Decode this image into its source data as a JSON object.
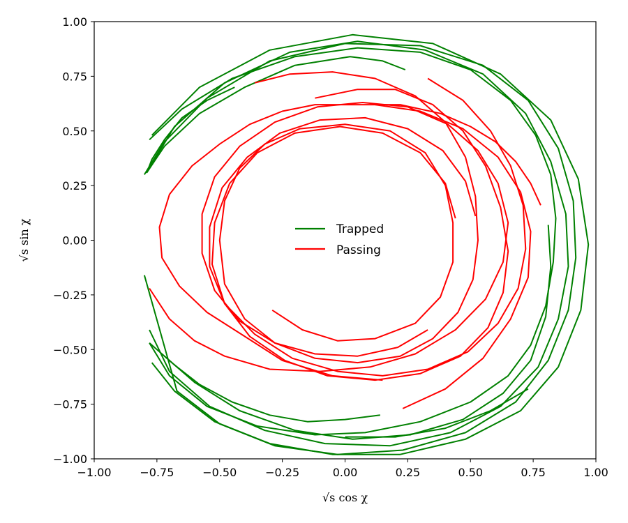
{
  "chart_data": {
    "type": "line",
    "xlabel": "√s cos χ",
    "ylabel": "√s sin χ",
    "xlim": [
      -1.0,
      1.0
    ],
    "ylim": [
      -1.0,
      1.0
    ],
    "xticks": [
      "−1.00",
      "−0.75",
      "−0.50",
      "−0.25",
      "0.00",
      "0.25",
      "0.50",
      "0.75",
      "1.00"
    ],
    "yticks": [
      "−1.00",
      "−0.75",
      "−0.50",
      "−0.25",
      "0.00",
      "0.25",
      "0.50",
      "0.75",
      "1.00"
    ],
    "grid": false,
    "legend": {
      "position": "center",
      "entries": [
        "Trapped",
        "Passing"
      ]
    },
    "colors": {
      "Trapped": "#008000",
      "Passing": "#ff0000"
    },
    "series": [
      {
        "name": "Trapped",
        "color": "#008000",
        "values": [
          [
            -0.44,
            0.7
          ],
          [
            -0.55,
            0.64
          ],
          [
            -0.65,
            0.56
          ],
          [
            -0.72,
            0.46
          ],
          [
            -0.77,
            0.37
          ],
          [
            -0.79,
            0.31
          ],
          [
            -0.72,
            0.43
          ],
          [
            -0.58,
            0.58
          ],
          [
            -0.4,
            0.7
          ],
          [
            -0.2,
            0.8
          ],
          [
            0.02,
            0.84
          ],
          [
            0.15,
            0.82
          ],
          [
            0.24,
            0.78
          ]
        ]
      },
      {
        "name": "Trapped",
        "color": "#008000",
        "values": [
          [
            -0.78,
            0.46
          ],
          [
            -0.65,
            0.6
          ],
          [
            -0.45,
            0.74
          ],
          [
            -0.2,
            0.84
          ],
          [
            0.05,
            0.88
          ],
          [
            0.3,
            0.86
          ],
          [
            0.5,
            0.78
          ],
          [
            0.66,
            0.64
          ],
          [
            0.76,
            0.48
          ],
          [
            0.82,
            0.3
          ],
          [
            0.84,
            0.1
          ],
          [
            0.83,
            -0.1
          ],
          [
            0.8,
            -0.3
          ],
          [
            0.74,
            -0.48
          ],
          [
            0.65,
            -0.62
          ],
          [
            0.5,
            -0.74
          ],
          [
            0.3,
            -0.83
          ],
          [
            0.08,
            -0.88
          ],
          [
            -0.12,
            -0.89
          ],
          [
            -0.35,
            -0.85
          ],
          [
            -0.55,
            -0.76
          ],
          [
            -0.7,
            -0.62
          ],
          [
            -0.78,
            -0.47
          ]
        ]
      },
      {
        "name": "Trapped",
        "color": "#008000",
        "values": [
          [
            -0.8,
            0.3
          ],
          [
            -0.72,
            0.45
          ],
          [
            -0.55,
            0.65
          ],
          [
            -0.3,
            0.82
          ],
          [
            0.0,
            0.9
          ],
          [
            0.3,
            0.89
          ],
          [
            0.55,
            0.8
          ],
          [
            0.73,
            0.64
          ],
          [
            0.85,
            0.42
          ],
          [
            0.91,
            0.18
          ],
          [
            0.92,
            -0.08
          ],
          [
            0.89,
            -0.32
          ],
          [
            0.81,
            -0.55
          ],
          [
            0.68,
            -0.74
          ],
          [
            0.48,
            -0.88
          ],
          [
            0.23,
            -0.96
          ],
          [
            -0.03,
            -0.98
          ],
          [
            -0.28,
            -0.94
          ],
          [
            -0.5,
            -0.84
          ],
          [
            -0.67,
            -0.69
          ],
          [
            -0.8,
            -0.16
          ]
        ]
      },
      {
        "name": "Trapped",
        "color": "#008000",
        "values": [
          [
            -0.79,
            0.31
          ],
          [
            -0.68,
            0.52
          ],
          [
            -0.48,
            0.72
          ],
          [
            -0.22,
            0.86
          ],
          [
            0.05,
            0.91
          ],
          [
            0.32,
            0.87
          ],
          [
            0.55,
            0.76
          ],
          [
            0.72,
            0.58
          ],
          [
            0.82,
            0.36
          ],
          [
            0.88,
            0.12
          ],
          [
            0.89,
            -0.12
          ],
          [
            0.85,
            -0.36
          ],
          [
            0.77,
            -0.58
          ],
          [
            0.62,
            -0.76
          ],
          [
            0.42,
            -0.88
          ],
          [
            0.18,
            -0.94
          ],
          [
            -0.08,
            -0.93
          ],
          [
            -0.32,
            -0.87
          ],
          [
            -0.54,
            -0.76
          ],
          [
            -0.7,
            -0.6
          ],
          [
            -0.78,
            -0.41
          ]
        ]
      },
      {
        "name": "Trapped",
        "color": "#008000",
        "values": [
          [
            -0.77,
            0.48
          ],
          [
            -0.58,
            0.7
          ],
          [
            -0.3,
            0.87
          ],
          [
            0.03,
            0.94
          ],
          [
            0.35,
            0.9
          ],
          [
            0.62,
            0.76
          ],
          [
            0.82,
            0.55
          ],
          [
            0.93,
            0.28
          ],
          [
            0.97,
            -0.02
          ],
          [
            0.94,
            -0.32
          ],
          [
            0.85,
            -0.58
          ],
          [
            0.7,
            -0.78
          ],
          [
            0.48,
            -0.91
          ],
          [
            0.22,
            -0.98
          ],
          [
            -0.05,
            -0.98
          ],
          [
            -0.3,
            -0.93
          ],
          [
            -0.52,
            -0.83
          ],
          [
            -0.68,
            -0.69
          ],
          [
            -0.77,
            -0.56
          ]
        ]
      },
      {
        "name": "Trapped",
        "color": "#008000",
        "values": [
          [
            0.81,
            0.07
          ],
          [
            0.82,
            -0.12
          ],
          [
            0.8,
            -0.35
          ],
          [
            0.74,
            -0.55
          ],
          [
            0.63,
            -0.7
          ],
          [
            0.47,
            -0.82
          ],
          [
            0.26,
            -0.89
          ],
          [
            0.03,
            -0.91
          ],
          [
            -0.2,
            -0.87
          ],
          [
            -0.42,
            -0.78
          ],
          [
            -0.6,
            -0.65
          ],
          [
            -0.72,
            -0.53
          ]
        ]
      },
      {
        "name": "Trapped",
        "color": "#008000",
        "values": [
          [
            0.14,
            -0.8
          ],
          [
            0.0,
            -0.82
          ],
          [
            -0.15,
            -0.83
          ],
          [
            -0.3,
            -0.8
          ],
          [
            -0.45,
            -0.74
          ],
          [
            -0.58,
            -0.66
          ],
          [
            -0.68,
            -0.57
          ],
          [
            -0.75,
            -0.5
          ],
          [
            -0.78,
            -0.47
          ]
        ]
      },
      {
        "name": "Trapped",
        "color": "#008000",
        "values": [
          [
            0.73,
            -0.68
          ],
          [
            0.58,
            -0.78
          ],
          [
            0.4,
            -0.86
          ],
          [
            0.2,
            -0.9
          ],
          [
            0.0,
            -0.9
          ]
        ]
      },
      {
        "name": "Passing",
        "color": "#ff0000",
        "values": [
          [
            -0.36,
            0.72
          ],
          [
            -0.22,
            0.76
          ],
          [
            -0.05,
            0.77
          ],
          [
            0.12,
            0.74
          ],
          [
            0.28,
            0.66
          ],
          [
            0.4,
            0.54
          ],
          [
            0.48,
            0.38
          ],
          [
            0.52,
            0.2
          ],
          [
            0.53,
            0.0
          ],
          [
            0.51,
            -0.18
          ],
          [
            0.45,
            -0.33
          ],
          [
            0.35,
            -0.45
          ],
          [
            0.22,
            -0.53
          ],
          [
            0.05,
            -0.56
          ],
          [
            -0.12,
            -0.54
          ],
          [
            -0.28,
            -0.47
          ],
          [
            -0.4,
            -0.36
          ],
          [
            -0.48,
            -0.2
          ],
          [
            -0.5,
            0.0
          ],
          [
            -0.48,
            0.18
          ],
          [
            -0.42,
            0.33
          ],
          [
            -0.32,
            0.44
          ],
          [
            -0.18,
            0.51
          ],
          [
            0.0,
            0.53
          ],
          [
            0.18,
            0.5
          ],
          [
            0.32,
            0.4
          ],
          [
            0.4,
            0.25
          ],
          [
            0.43,
            0.08
          ],
          [
            0.43,
            -0.1
          ],
          [
            0.38,
            -0.26
          ],
          [
            0.28,
            -0.38
          ],
          [
            0.12,
            -0.45
          ],
          [
            -0.03,
            -0.46
          ],
          [
            -0.17,
            -0.41
          ],
          [
            -0.29,
            -0.32
          ]
        ]
      },
      {
        "name": "Passing",
        "color": "#ff0000",
        "values": [
          [
            -0.12,
            0.65
          ],
          [
            0.05,
            0.69
          ],
          [
            0.2,
            0.69
          ],
          [
            0.35,
            0.62
          ],
          [
            0.47,
            0.5
          ],
          [
            0.56,
            0.34
          ],
          [
            0.62,
            0.15
          ],
          [
            0.65,
            -0.05
          ],
          [
            0.63,
            -0.24
          ],
          [
            0.57,
            -0.4
          ],
          [
            0.46,
            -0.53
          ],
          [
            0.3,
            -0.61
          ],
          [
            0.12,
            -0.64
          ],
          [
            -0.07,
            -0.62
          ],
          [
            -0.24,
            -0.55
          ],
          [
            -0.38,
            -0.44
          ],
          [
            -0.48,
            -0.29
          ],
          [
            -0.53,
            -0.11
          ],
          [
            -0.52,
            0.08
          ],
          [
            -0.46,
            0.26
          ],
          [
            -0.35,
            0.4
          ],
          [
            -0.2,
            0.49
          ],
          [
            -0.02,
            0.52
          ],
          [
            0.15,
            0.49
          ],
          [
            0.3,
            0.4
          ],
          [
            0.4,
            0.26
          ],
          [
            0.44,
            0.1
          ]
        ]
      },
      {
        "name": "Passing",
        "color": "#ff0000",
        "values": [
          [
            0.33,
            0.74
          ],
          [
            0.47,
            0.64
          ],
          [
            0.58,
            0.5
          ],
          [
            0.66,
            0.34
          ],
          [
            0.71,
            0.16
          ],
          [
            0.72,
            -0.04
          ],
          [
            0.69,
            -0.22
          ],
          [
            0.61,
            -0.38
          ],
          [
            0.49,
            -0.51
          ],
          [
            0.33,
            -0.59
          ],
          [
            0.15,
            -0.62
          ],
          [
            -0.03,
            -0.6
          ],
          [
            -0.21,
            -0.54
          ],
          [
            -0.36,
            -0.43
          ],
          [
            -0.48,
            -0.29
          ],
          [
            -0.54,
            -0.12
          ],
          [
            -0.54,
            0.06
          ],
          [
            -0.49,
            0.24
          ],
          [
            -0.39,
            0.38
          ],
          [
            -0.26,
            0.49
          ],
          [
            -0.1,
            0.55
          ],
          [
            0.08,
            0.56
          ],
          [
            0.25,
            0.51
          ],
          [
            0.39,
            0.41
          ],
          [
            0.48,
            0.27
          ],
          [
            0.52,
            0.11
          ]
        ]
      },
      {
        "name": "Passing",
        "color": "#ff0000",
        "values": [
          [
            -0.78,
            -0.22
          ],
          [
            -0.7,
            -0.36
          ],
          [
            -0.6,
            -0.46
          ],
          [
            -0.48,
            -0.53
          ],
          [
            -0.3,
            -0.59
          ],
          [
            -0.1,
            -0.6
          ],
          [
            0.1,
            -0.58
          ],
          [
            0.28,
            -0.52
          ],
          [
            0.44,
            -0.41
          ],
          [
            0.56,
            -0.27
          ],
          [
            0.63,
            -0.1
          ],
          [
            0.65,
            0.08
          ],
          [
            0.61,
            0.26
          ],
          [
            0.53,
            0.41
          ],
          [
            0.41,
            0.53
          ],
          [
            0.25,
            0.61
          ],
          [
            0.07,
            0.63
          ],
          [
            -0.11,
            0.61
          ],
          [
            -0.28,
            0.54
          ],
          [
            -0.42,
            0.43
          ],
          [
            -0.52,
            0.29
          ],
          [
            -0.57,
            0.12
          ],
          [
            -0.57,
            -0.06
          ],
          [
            -0.52,
            -0.23
          ],
          [
            -0.42,
            -0.37
          ],
          [
            -0.28,
            -0.47
          ],
          [
            -0.12,
            -0.52
          ],
          [
            0.05,
            -0.53
          ],
          [
            0.21,
            -0.49
          ],
          [
            0.33,
            -0.41
          ]
        ]
      },
      {
        "name": "Passing",
        "color": "#ff0000",
        "values": [
          [
            0.78,
            0.16
          ],
          [
            0.74,
            0.26
          ],
          [
            0.68,
            0.36
          ],
          [
            0.6,
            0.45
          ],
          [
            0.5,
            0.52
          ],
          [
            0.38,
            0.58
          ],
          [
            0.22,
            0.62
          ],
          [
            0.05,
            0.62
          ],
          [
            -0.12,
            0.62
          ],
          [
            -0.25,
            0.59
          ],
          [
            -0.38,
            0.53
          ],
          [
            -0.5,
            0.44
          ],
          [
            -0.61,
            0.34
          ],
          [
            -0.7,
            0.21
          ],
          [
            -0.74,
            0.06
          ],
          [
            -0.73,
            -0.08
          ],
          [
            -0.66,
            -0.21
          ],
          [
            -0.55,
            -0.33
          ],
          [
            -0.4,
            -0.44
          ],
          [
            -0.25,
            -0.55
          ],
          [
            -0.05,
            -0.62
          ],
          [
            0.15,
            -0.64
          ]
        ]
      },
      {
        "name": "Passing",
        "color": "#ff0000",
        "values": [
          [
            0.23,
            -0.77
          ],
          [
            0.4,
            -0.68
          ],
          [
            0.55,
            -0.54
          ],
          [
            0.66,
            -0.36
          ],
          [
            0.73,
            -0.17
          ],
          [
            0.74,
            0.04
          ],
          [
            0.7,
            0.22
          ],
          [
            0.61,
            0.38
          ],
          [
            0.47,
            0.51
          ],
          [
            0.3,
            0.59
          ],
          [
            0.12,
            0.62
          ]
        ]
      }
    ]
  }
}
